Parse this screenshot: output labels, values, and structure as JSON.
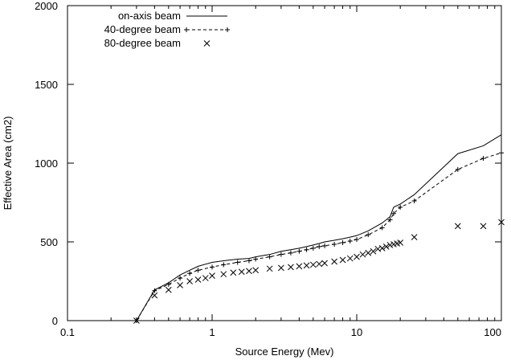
{
  "chart_data": {
    "type": "line",
    "xscale": "log",
    "xlim": [
      0.1,
      100
    ],
    "ylim": [
      0,
      2000
    ],
    "xlabel": "Source Energy (Mev)",
    "ylabel": "Effective Area (cm2)",
    "xticks": [
      {
        "value": 0.1,
        "label": "0.1"
      },
      {
        "value": 1,
        "label": "1"
      },
      {
        "value": 10,
        "label": "10"
      },
      {
        "value": 100,
        "label": "100"
      }
    ],
    "yticks": [
      {
        "value": 0,
        "label": "0"
      },
      {
        "value": 500,
        "label": "500"
      },
      {
        "value": 1000,
        "label": "1000"
      },
      {
        "value": 1500,
        "label": "1500"
      },
      {
        "value": 2000,
        "label": "2000"
      }
    ],
    "legend_position": "top-left",
    "series": [
      {
        "name": "on-axis beam",
        "style": "solid",
        "x": [
          0.3,
          0.4,
          0.5,
          0.6,
          0.7,
          0.8,
          1.0,
          1.2,
          1.5,
          1.8,
          2.0,
          2.5,
          3.0,
          3.5,
          4.0,
          4.5,
          5.0,
          5.5,
          6.0,
          7.0,
          8.0,
          9.0,
          10.0,
          12.0,
          15.0,
          17.0,
          18.0,
          20.0,
          25.0,
          50.0,
          75.0,
          100.0
        ],
        "y": [
          0,
          195,
          240,
          290,
          320,
          345,
          370,
          380,
          390,
          395,
          405,
          420,
          440,
          450,
          460,
          470,
          480,
          490,
          500,
          510,
          520,
          530,
          540,
          570,
          620,
          660,
          720,
          740,
          800,
          1060,
          1110,
          1180
        ]
      },
      {
        "name": "40-degree beam",
        "style": "dashed-plus",
        "x": [
          0.3,
          0.4,
          0.5,
          0.6,
          0.7,
          0.8,
          1.0,
          1.2,
          1.5,
          1.8,
          2.0,
          2.5,
          3.0,
          3.5,
          4.0,
          4.5,
          5.0,
          5.5,
          6.0,
          7.0,
          8.0,
          9.0,
          10.0,
          12.0,
          15.0,
          17.0,
          18.0,
          20.0,
          25.0,
          50.0,
          75.0,
          100.0
        ],
        "y": [
          0,
          190,
          230,
          270,
          300,
          320,
          340,
          355,
          370,
          380,
          390,
          405,
          420,
          430,
          440,
          450,
          460,
          470,
          475,
          485,
          495,
          505,
          515,
          545,
          590,
          640,
          680,
          720,
          760,
          960,
          1030,
          1065
        ]
      },
      {
        "name": "80-degree beam",
        "style": "x",
        "x": [
          0.3,
          0.4,
          0.5,
          0.6,
          0.7,
          0.8,
          0.9,
          1.0,
          1.2,
          1.4,
          1.6,
          1.8,
          2.0,
          2.5,
          3.0,
          3.5,
          4.0,
          4.5,
          5.0,
          5.5,
          6.0,
          7.0,
          8.0,
          9.0,
          10.0,
          11.0,
          12.0,
          13.0,
          14.0,
          15.0,
          16.0,
          17.0,
          18.0,
          19.0,
          20.0,
          25.0,
          50.0,
          75.0,
          100.0
        ],
        "y": [
          0,
          160,
          195,
          225,
          250,
          260,
          270,
          285,
          295,
          305,
          310,
          315,
          320,
          330,
          335,
          340,
          345,
          350,
          355,
          360,
          365,
          375,
          385,
          395,
          405,
          420,
          430,
          440,
          455,
          460,
          470,
          480,
          485,
          490,
          495,
          530,
          600,
          600,
          625
        ]
      }
    ]
  }
}
